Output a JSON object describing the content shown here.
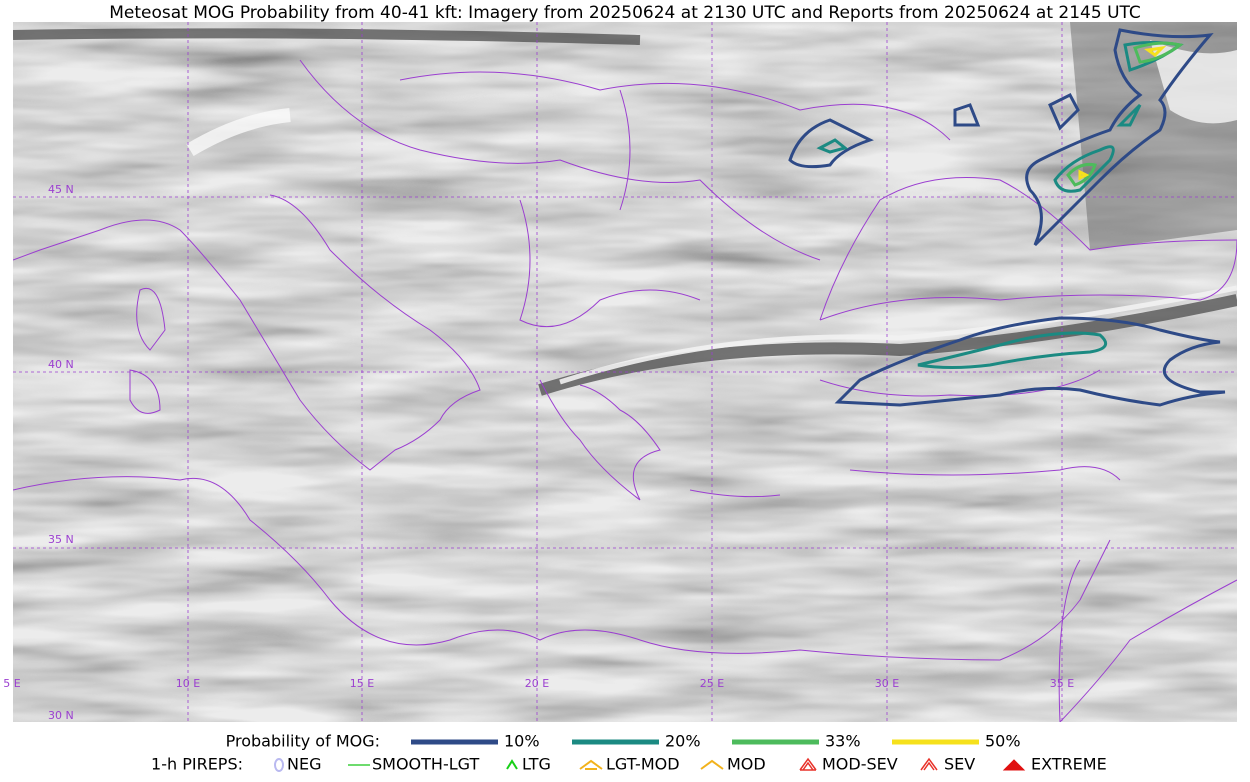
{
  "title": "Meteosat MOG Probability from 40-41 kft: Imagery from 20250624 at 2130 UTC and Reports from 20250624 at 2145 UTC",
  "map": {
    "lat_labels": [
      "45 N",
      "40 N",
      "35 N",
      "30 N"
    ],
    "lon_labels": [
      "5 E",
      "10 E",
      "15 E",
      "20 E",
      "25 E",
      "30 E",
      "35 E"
    ]
  },
  "legend": {
    "probability": {
      "label": "Probability of MOG:",
      "items": [
        {
          "label": "10%",
          "color": "#2e4a87"
        },
        {
          "label": "20%",
          "color": "#1b8a82"
        },
        {
          "label": "33%",
          "color": "#4dbb5c"
        },
        {
          "label": "50%",
          "color": "#f6e11c"
        }
      ]
    },
    "pireps": {
      "label": "1-h PIREPS:",
      "items": [
        {
          "label": "NEG",
          "color": "#b9b9f0"
        },
        {
          "label": "SMOOTH-LGT",
          "color": "#3ecf3e"
        },
        {
          "label": "LTG",
          "color": "#18d018"
        },
        {
          "label": "LGT-MOD",
          "color": "#f2b21c"
        },
        {
          "label": "MOD",
          "color": "#f2b21c"
        },
        {
          "label": "MOD-SEV",
          "color": "#e8322a"
        },
        {
          "label": "SEV",
          "color": "#e8322a"
        },
        {
          "label": "EXTREME",
          "color": "#e01010"
        }
      ]
    }
  }
}
